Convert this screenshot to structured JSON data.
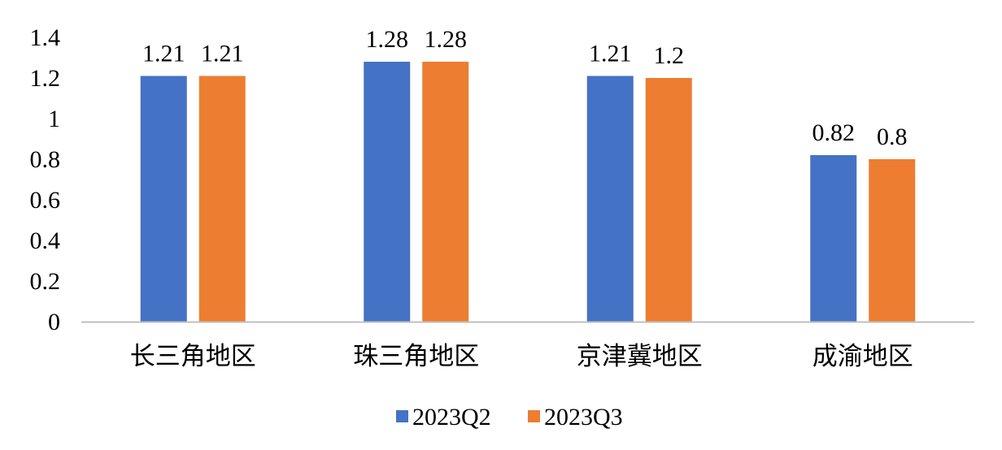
{
  "chart_data": {
    "type": "bar",
    "categories": [
      "长三角地区",
      "珠三角地区",
      "京津冀地区",
      "成渝地区"
    ],
    "series": [
      {
        "name": "2023Q2",
        "values": [
          1.21,
          1.28,
          1.21,
          0.82
        ],
        "color": "#4472C4"
      },
      {
        "name": "2023Q3",
        "values": [
          1.21,
          1.28,
          1.2,
          0.8
        ],
        "color": "#ED7D31"
      }
    ],
    "data_labels": [
      [
        "1.21",
        "1.28",
        "1.21",
        "0.82"
      ],
      [
        "1.21",
        "1.28",
        "1.2",
        "0.8"
      ]
    ],
    "y_ticks": [
      "0",
      "0.2",
      "0.4",
      "0.6",
      "0.8",
      "1",
      "1.2",
      "1.4"
    ],
    "y_tick_values": [
      0,
      0.2,
      0.4,
      0.6,
      0.8,
      1,
      1.2,
      1.4
    ],
    "ylim": [
      0,
      1.4
    ],
    "title": "",
    "xlabel": "",
    "ylabel": "",
    "grid": false,
    "legend_position": "bottom",
    "axis_color": "#BFBFBF"
  }
}
